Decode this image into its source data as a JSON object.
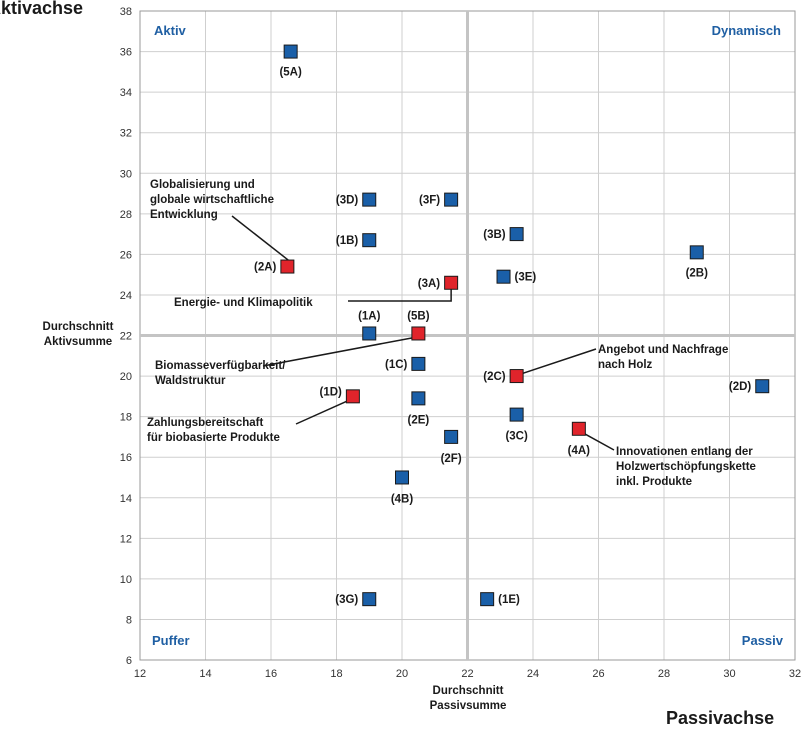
{
  "chart_data": {
    "type": "scatter",
    "x_axis": {
      "title": "Passivachse",
      "label_lines": [
        "Durchschnitt",
        "Passivsumme"
      ],
      "range": [
        12,
        32
      ],
      "ticks": [
        12,
        14,
        16,
        18,
        20,
        22,
        24,
        26,
        28,
        30,
        32
      ]
    },
    "y_axis": {
      "title": "Aktivachse",
      "label_lines": [
        "Durchschnitt",
        "Aktivsumme"
      ],
      "range": [
        6,
        38
      ],
      "ticks": [
        6,
        8,
        10,
        12,
        14,
        16,
        18,
        20,
        22,
        24,
        26,
        28,
        30,
        32,
        34,
        36,
        38
      ]
    },
    "grid": true,
    "dividers": {
      "x": 22,
      "y": 22
    },
    "quadrants": {
      "top_left": "Aktiv",
      "top_right": "Dynamisch",
      "bottom_left": "Puffer",
      "bottom_right": "Passiv"
    },
    "colors": {
      "blue": "#1a5fa8",
      "red": "#e0242b",
      "quadrant_text": "#1f5fa3"
    },
    "points": [
      {
        "id": "(5A)",
        "x": 16.6,
        "y": 36.0,
        "color": "blue"
      },
      {
        "id": "(3D)",
        "x": 19.0,
        "y": 28.7,
        "color": "blue"
      },
      {
        "id": "(3F)",
        "x": 21.5,
        "y": 28.7,
        "color": "blue"
      },
      {
        "id": "(1B)",
        "x": 19.0,
        "y": 26.7,
        "color": "blue"
      },
      {
        "id": "(3B)",
        "x": 23.5,
        "y": 27.0,
        "color": "blue"
      },
      {
        "id": "(2B)",
        "x": 29.0,
        "y": 26.1,
        "color": "blue"
      },
      {
        "id": "(2A)",
        "x": 16.5,
        "y": 25.4,
        "color": "red"
      },
      {
        "id": "(3A)",
        "x": 21.5,
        "y": 24.6,
        "color": "red"
      },
      {
        "id": "(3E)",
        "x": 23.1,
        "y": 24.9,
        "color": "blue"
      },
      {
        "id": "(1A)",
        "x": 19.0,
        "y": 22.1,
        "color": "blue"
      },
      {
        "id": "(5B)",
        "x": 20.5,
        "y": 22.1,
        "color": "red"
      },
      {
        "id": "(1C)",
        "x": 20.5,
        "y": 20.6,
        "color": "blue"
      },
      {
        "id": "(2C)",
        "x": 23.5,
        "y": 20.0,
        "color": "red"
      },
      {
        "id": "(2D)",
        "x": 31.0,
        "y": 19.5,
        "color": "blue"
      },
      {
        "id": "(1D)",
        "x": 18.5,
        "y": 19.0,
        "color": "red"
      },
      {
        "id": "(2E)",
        "x": 20.5,
        "y": 18.9,
        "color": "blue"
      },
      {
        "id": "(3C)",
        "x": 23.5,
        "y": 18.1,
        "color": "blue"
      },
      {
        "id": "(4A)",
        "x": 25.4,
        "y": 17.4,
        "color": "red"
      },
      {
        "id": "(2F)",
        "x": 21.5,
        "y": 17.0,
        "color": "blue"
      },
      {
        "id": "(4B)",
        "x": 20.0,
        "y": 15.0,
        "color": "blue"
      },
      {
        "id": "(3G)",
        "x": 19.0,
        "y": 9.0,
        "color": "blue"
      },
      {
        "id": "(1E)",
        "x": 22.6,
        "y": 9.0,
        "color": "blue"
      }
    ],
    "annotations": [
      {
        "target": "(2A)",
        "lines": [
          "Globalisierung und",
          "globale wirtschaftliche",
          "Entwicklung"
        ]
      },
      {
        "target": "(3A)",
        "lines": [
          "Energie- und Klimapolitik"
        ]
      },
      {
        "target": "(5B)",
        "lines": [
          "Biomasseverfügbarkeit/",
          "Waldstruktur"
        ]
      },
      {
        "target": "(1D)",
        "lines": [
          "Zahlungsbereitschaft",
          "für biobasierte Produkte"
        ]
      },
      {
        "target": "(2C)",
        "lines": [
          "Angebot und Nachfrage",
          "nach Holz"
        ]
      },
      {
        "target": "(4A)",
        "lines": [
          "Innovationen entlang der",
          "Holzwertschöpfungskette",
          "inkl. Produkte"
        ]
      }
    ]
  }
}
